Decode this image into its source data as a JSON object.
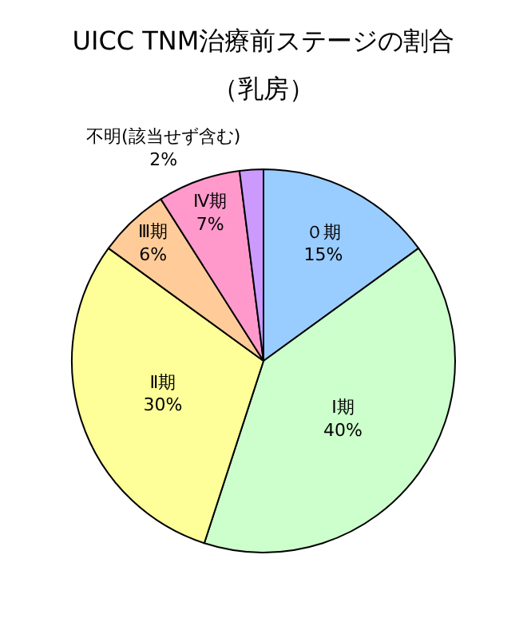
{
  "chart_data": {
    "type": "pie",
    "title": "UICC TNM治療前ステージの割合",
    "subtitle": "（乳房）",
    "categories": [
      "０期",
      "Ⅰ期",
      "Ⅱ期",
      "Ⅲ期",
      "Ⅳ期",
      "不明(該当せず含む)"
    ],
    "values": [
      15,
      40,
      30,
      6,
      7,
      2
    ],
    "value_labels": [
      "15%",
      "40%",
      "30%",
      "6%",
      "7%",
      "2%"
    ],
    "colors": [
      "#99ccff",
      "#ccffcc",
      "#ffff99",
      "#ffcc99",
      "#ff99cc",
      "#cc99ff"
    ],
    "legend": false
  }
}
